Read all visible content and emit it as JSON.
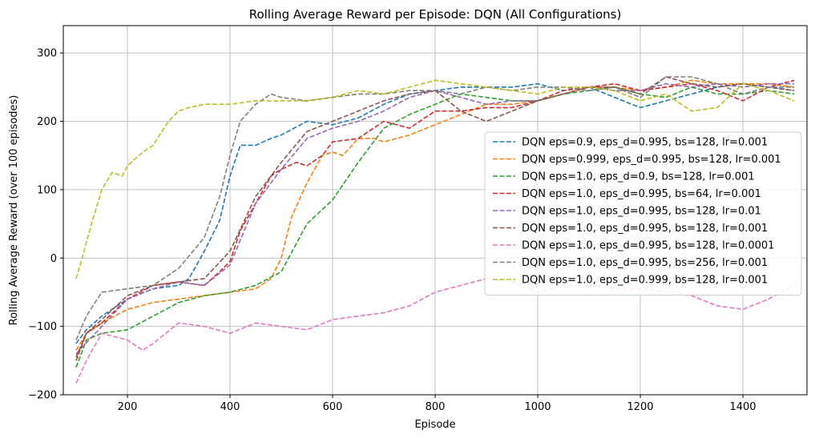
{
  "chart_data": {
    "type": "line",
    "title": "Rolling Average Reward per Episode: DQN (All Configurations)",
    "xlabel": "Episode",
    "ylabel": "Rolling Average Reward (over 100 episodes)",
    "xlim": [
      75,
      1525
    ],
    "ylim": [
      -200,
      340
    ],
    "xticks": [
      200,
      400,
      600,
      800,
      1000,
      1200,
      1400
    ],
    "yticks": [
      -200,
      -100,
      0,
      100,
      200,
      300
    ],
    "grid": true,
    "legend_position": "center-right",
    "line_style": "dashed",
    "series": [
      {
        "name": "DQN eps=0.9, eps_d=0.995, bs=128, lr=0.001",
        "color": "#1f77b4",
        "x": [
          100,
          120,
          150,
          200,
          250,
          300,
          320,
          350,
          380,
          400,
          420,
          450,
          480,
          500,
          550,
          600,
          650,
          700,
          750,
          800,
          850,
          900,
          950,
          1000,
          1050,
          1100,
          1150,
          1200,
          1250,
          1300,
          1350,
          1400,
          1450,
          1500
        ],
        "y": [
          -125,
          -105,
          -85,
          -60,
          -45,
          -40,
          -30,
          10,
          55,
          120,
          165,
          165,
          175,
          180,
          200,
          195,
          205,
          225,
          240,
          245,
          250,
          250,
          250,
          255,
          245,
          250,
          235,
          220,
          230,
          240,
          250,
          255,
          250,
          245
        ]
      },
      {
        "name": "DQN eps=0.999, eps_d=0.995, bs=128, lr=0.001",
        "color": "#ff7f0e",
        "x": [
          100,
          120,
          150,
          200,
          250,
          300,
          350,
          400,
          450,
          480,
          500,
          520,
          550,
          580,
          600,
          620,
          650,
          680,
          700,
          750,
          800,
          850,
          900,
          950,
          1000,
          1050,
          1100,
          1150,
          1200,
          1250,
          1300,
          1350,
          1400,
          1450,
          1500
        ],
        "y": [
          -135,
          -110,
          -95,
          -75,
          -65,
          -60,
          -55,
          -50,
          -45,
          -30,
          0,
          60,
          110,
          150,
          155,
          150,
          175,
          175,
          170,
          180,
          195,
          210,
          225,
          225,
          230,
          240,
          250,
          250,
          245,
          250,
          260,
          255,
          255,
          255,
          250
        ]
      },
      {
        "name": "DQN eps=1.0, eps_d=0.9, bs=128, lr=0.001",
        "color": "#2ca02c",
        "x": [
          100,
          120,
          150,
          200,
          250,
          300,
          350,
          400,
          450,
          500,
          550,
          600,
          650,
          700,
          750,
          800,
          850,
          900,
          950,
          1000,
          1050,
          1100,
          1150,
          1200,
          1250,
          1300,
          1350,
          1400,
          1450,
          1500
        ],
        "y": [
          -160,
          -120,
          -110,
          -105,
          -85,
          -65,
          -55,
          -50,
          -40,
          -20,
          50,
          85,
          140,
          190,
          210,
          225,
          240,
          235,
          230,
          230,
          240,
          245,
          250,
          240,
          235,
          250,
          240,
          240,
          245,
          240
        ]
      },
      {
        "name": "DQN eps=1.0, eps_d=0.995, bs=64, lr=0.001",
        "color": "#d62728",
        "x": [
          100,
          120,
          150,
          200,
          250,
          300,
          350,
          380,
          400,
          420,
          450,
          480,
          500,
          530,
          550,
          580,
          600,
          650,
          700,
          750,
          800,
          850,
          900,
          950,
          1000,
          1050,
          1100,
          1150,
          1200,
          1250,
          1300,
          1350,
          1400,
          1450,
          1500
        ],
        "y": [
          -150,
          -110,
          -95,
          -60,
          -40,
          -35,
          -40,
          -20,
          -5,
          40,
          80,
          120,
          130,
          140,
          135,
          150,
          170,
          175,
          200,
          190,
          215,
          215,
          220,
          220,
          230,
          245,
          250,
          255,
          245,
          250,
          255,
          245,
          230,
          250,
          260
        ]
      },
      {
        "name": "DQN eps=1.0, eps_d=0.995, bs=128, lr=0.01",
        "color": "#9467bd",
        "x": [
          100,
          150,
          200,
          250,
          300,
          350,
          400,
          450,
          500,
          550,
          600,
          650,
          700,
          750,
          800,
          850,
          900,
          950,
          1000,
          1050,
          1100,
          1150,
          1200,
          1250,
          1300,
          1350,
          1400,
          1450,
          1500
        ],
        "y": [
          -140,
          -100,
          -60,
          -45,
          -35,
          -40,
          -10,
          80,
          130,
          175,
          190,
          200,
          215,
          235,
          245,
          235,
          225,
          230,
          230,
          240,
          250,
          245,
          245,
          255,
          250,
          255,
          250,
          255,
          255
        ]
      },
      {
        "name": "DQN eps=1.0, eps_d=0.995, bs=128, lr=0.001",
        "color": "#8c564b",
        "x": [
          100,
          120,
          150,
          200,
          250,
          300,
          350,
          400,
          450,
          500,
          550,
          600,
          650,
          700,
          750,
          800,
          850,
          900,
          950,
          1000,
          1050,
          1100,
          1150,
          1200,
          1250,
          1300,
          1350,
          1400,
          1450,
          1500
        ],
        "y": [
          -145,
          -110,
          -90,
          -55,
          -40,
          -35,
          -30,
          10,
          90,
          140,
          185,
          200,
          215,
          230,
          240,
          245,
          215,
          200,
          215,
          230,
          240,
          250,
          250,
          240,
          265,
          255,
          250,
          255,
          250,
          245
        ]
      },
      {
        "name": "DQN eps=1.0, eps_d=0.995, bs=128, lr=0.0001",
        "color": "#e377c2",
        "x": [
          100,
          120,
          150,
          200,
          230,
          250,
          300,
          350,
          400,
          450,
          500,
          550,
          600,
          650,
          700,
          750,
          800,
          850,
          900,
          950,
          1000,
          1050,
          1100,
          1150,
          1200,
          1250,
          1300,
          1350,
          1400,
          1450,
          1500
        ],
        "y": [
          -183,
          -150,
          -110,
          -120,
          -135,
          -125,
          -95,
          -100,
          -110,
          -95,
          -100,
          -105,
          -90,
          -85,
          -80,
          -70,
          -50,
          -40,
          -30,
          -35,
          -50,
          -40,
          -40,
          -45,
          -45,
          -50,
          -55,
          -70,
          -75,
          -60,
          -40
        ]
      },
      {
        "name": "DQN eps=1.0, eps_d=0.995, bs=256, lr=0.001",
        "color": "#7f7f7f",
        "x": [
          100,
          120,
          150,
          200,
          250,
          300,
          350,
          380,
          400,
          420,
          450,
          480,
          500,
          550,
          600,
          650,
          700,
          750,
          800,
          850,
          900,
          950,
          1000,
          1050,
          1100,
          1150,
          1200,
          1250,
          1300,
          1350,
          1400,
          1450,
          1500
        ],
        "y": [
          -120,
          -85,
          -50,
          -45,
          -40,
          -15,
          30,
          90,
          150,
          200,
          225,
          240,
          235,
          230,
          235,
          240,
          240,
          245,
          245,
          240,
          250,
          245,
          250,
          250,
          245,
          250,
          235,
          265,
          265,
          255,
          240,
          250,
          250
        ]
      },
      {
        "name": "DQN eps=1.0, eps_d=0.999, bs=128, lr=0.001",
        "color": "#bcbd22",
        "x": [
          100,
          110,
          130,
          150,
          170,
          190,
          200,
          230,
          250,
          280,
          300,
          320,
          350,
          400,
          450,
          500,
          550,
          600,
          650,
          700,
          750,
          800,
          850,
          900,
          950,
          1000,
          1050,
          1100,
          1150,
          1200,
          1250,
          1300,
          1350,
          1400,
          1450,
          1500
        ],
        "y": [
          -30,
          -5,
          50,
          100,
          125,
          120,
          135,
          155,
          165,
          200,
          215,
          220,
          225,
          225,
          230,
          230,
          230,
          235,
          245,
          240,
          250,
          260,
          255,
          250,
          245,
          240,
          250,
          250,
          245,
          230,
          240,
          215,
          220,
          255,
          245,
          230
        ]
      }
    ]
  }
}
